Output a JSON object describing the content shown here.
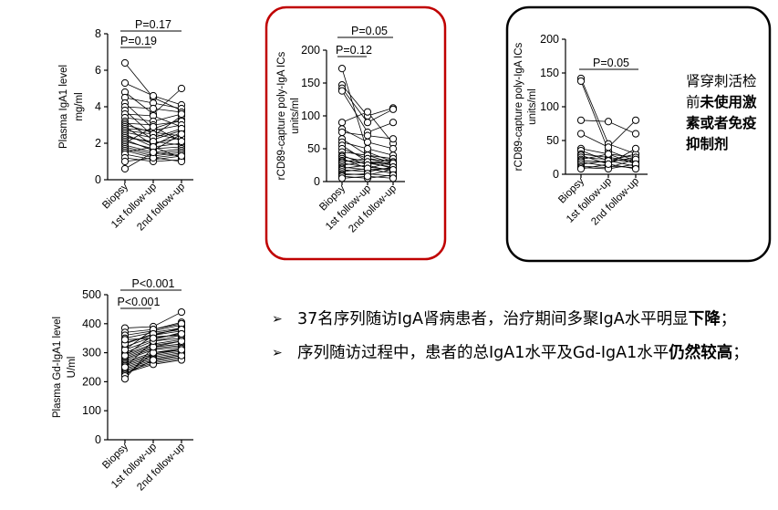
{
  "colors": {
    "panel2_border": "#c00000",
    "panel3_border": "#000000",
    "text": "#000000"
  },
  "charts": [
    {
      "title": "",
      "ylabel": "Plasma IgA1 level",
      "yunit": "mg/ml",
      "ylim": [
        0,
        8
      ],
      "yticks": [
        "0",
        "2",
        "4",
        "6",
        "8"
      ],
      "categories": [
        "Biopsy",
        "1st follow-up",
        "2nd follow-up"
      ],
      "pvalues": [
        "P=0.17",
        "P=0.19"
      ]
    },
    {
      "title": "",
      "ylabel": "rCD89-capture poly-IgA ICs",
      "yunit": "units/ml",
      "ylim": [
        0,
        200
      ],
      "yticks": [
        "0",
        "50",
        "100",
        "150",
        "200"
      ],
      "categories": [
        "Biopsy",
        "1st follow-up",
        "2nd follow-up"
      ],
      "pvalues": [
        "P=0.05",
        "P=0.12"
      ]
    },
    {
      "title": "",
      "ylabel": "rCD89-capture poly-IgA ICs",
      "yunit": "units/ml",
      "ylim": [
        0,
        200
      ],
      "yticks": [
        "0",
        "50",
        "100",
        "150",
        "200"
      ],
      "categories": [
        "Biopsy",
        "1st follow-up",
        "2nd follow-up"
      ],
      "pvalues": [
        "P=0.05"
      ]
    },
    {
      "title": "",
      "ylabel": "Plasma Gd-IgA1 level",
      "yunit": "U/ml",
      "ylim": [
        0,
        500
      ],
      "yticks": [
        "0",
        "100",
        "200",
        "300",
        "400",
        "500"
      ],
      "categories": [
        "Biopsy",
        "1st follow-up",
        "2nd follow-up"
      ],
      "pvalues": [
        "P<0.001",
        "P<0.001"
      ]
    }
  ],
  "chart_data": [
    {
      "type": "scatter",
      "ylabel": "Plasma IgA1 level mg/ml",
      "categories": [
        "Biopsy",
        "1st follow-up",
        "2nd follow-up"
      ],
      "ylim": [
        0,
        8
      ],
      "series": [
        {
          "values": [
            6.4,
            4.5,
            3.8
          ]
        },
        {
          "values": [
            5.3,
            4.6,
            4.1
          ]
        },
        {
          "values": [
            4.8,
            3.6,
            5.0
          ]
        },
        {
          "values": [
            4.5,
            4.2,
            3.9
          ]
        },
        {
          "values": [
            4.2,
            2.8,
            3.3
          ]
        },
        {
          "values": [
            4.0,
            3.9,
            3.7
          ]
        },
        {
          "values": [
            3.8,
            2.4,
            3.5
          ]
        },
        {
          "values": [
            3.6,
            3.5,
            2.9
          ]
        },
        {
          "values": [
            3.4,
            3.2,
            3.6
          ]
        },
        {
          "values": [
            3.2,
            2.2,
            2.7
          ]
        },
        {
          "values": [
            3.1,
            3.0,
            3.2
          ]
        },
        {
          "values": [
            3.0,
            2.6,
            2.4
          ]
        },
        {
          "values": [
            2.9,
            1.9,
            2.6
          ]
        },
        {
          "values": [
            2.8,
            2.7,
            3.0
          ]
        },
        {
          "values": [
            2.7,
            2.5,
            2.2
          ]
        },
        {
          "values": [
            2.6,
            2.3,
            2.8
          ]
        },
        {
          "values": [
            2.5,
            1.8,
            2.0
          ]
        },
        {
          "values": [
            2.4,
            2.0,
            2.3
          ]
        },
        {
          "values": [
            2.3,
            2.1,
            1.9
          ]
        },
        {
          "values": [
            2.2,
            1.6,
            2.5
          ]
        },
        {
          "values": [
            2.1,
            1.7,
            1.8
          ]
        },
        {
          "values": [
            2.0,
            2.9,
            2.1
          ]
        },
        {
          "values": [
            1.9,
            1.5,
            1.7
          ]
        },
        {
          "values": [
            1.8,
            1.4,
            1.6
          ]
        },
        {
          "values": [
            1.7,
            1.3,
            1.5
          ]
        },
        {
          "values": [
            1.6,
            1.2,
            1.4
          ]
        },
        {
          "values": [
            1.5,
            1.8,
            1.2
          ]
        },
        {
          "values": [
            1.4,
            1.1,
            1.3
          ]
        },
        {
          "values": [
            1.2,
            1.0,
            1.1
          ]
        },
        {
          "values": [
            1.0,
            1.2,
            1.0
          ]
        },
        {
          "values": [
            0.6,
            1.5,
            1.3
          ]
        }
      ]
    },
    {
      "type": "scatter",
      "ylabel": "rCD89-capture poly-IgA ICs units/ml",
      "categories": [
        "Biopsy",
        "1st follow-up",
        "2nd follow-up"
      ],
      "ylim": [
        0,
        200
      ],
      "series": [
        {
          "values": [
            172,
            45,
            30
          ]
        },
        {
          "values": [
            147,
            100,
            112
          ]
        },
        {
          "values": [
            142,
            90,
            110
          ]
        },
        {
          "values": [
            138,
            75,
            90
          ]
        },
        {
          "values": [
            90,
            106,
            58
          ]
        },
        {
          "values": [
            80,
            60,
            50
          ]
        },
        {
          "values": [
            75,
            70,
            65
          ]
        },
        {
          "values": [
            65,
            40,
            35
          ]
        },
        {
          "values": [
            60,
            50,
            40
          ]
        },
        {
          "values": [
            55,
            30,
            25
          ]
        },
        {
          "values": [
            50,
            35,
            30
          ]
        },
        {
          "values": [
            45,
            40,
            28
          ]
        },
        {
          "values": [
            40,
            25,
            35
          ]
        },
        {
          "values": [
            38,
            30,
            20
          ]
        },
        {
          "values": [
            35,
            20,
            30
          ]
        },
        {
          "values": [
            32,
            28,
            22
          ]
        },
        {
          "values": [
            30,
            35,
            25
          ]
        },
        {
          "values": [
            28,
            22,
            18
          ]
        },
        {
          "values": [
            25,
            30,
            28
          ]
        },
        {
          "values": [
            22,
            18,
            20
          ]
        },
        {
          "values": [
            20,
            25,
            15
          ]
        },
        {
          "values": [
            18,
            15,
            22
          ]
        },
        {
          "values": [
            15,
            20,
            12
          ]
        },
        {
          "values": [
            12,
            10,
            18
          ]
        },
        {
          "values": [
            10,
            12,
            8
          ]
        },
        {
          "values": [
            8,
            5,
            10
          ]
        },
        {
          "values": [
            5,
            8,
            5
          ]
        }
      ]
    },
    {
      "type": "scatter",
      "ylabel": "rCD89-capture poly-IgA ICs units/ml",
      "categories": [
        "Biopsy",
        "1st follow-up",
        "2nd follow-up"
      ],
      "ylim": [
        0,
        200
      ],
      "series": [
        {
          "values": [
            142,
            45,
            30
          ]
        },
        {
          "values": [
            138,
            35,
            20
          ]
        },
        {
          "values": [
            80,
            78,
            60
          ]
        },
        {
          "values": [
            60,
            40,
            80
          ]
        },
        {
          "values": [
            38,
            30,
            25
          ]
        },
        {
          "values": [
            35,
            20,
            30
          ]
        },
        {
          "values": [
            30,
            25,
            20
          ]
        },
        {
          "values": [
            28,
            15,
            38
          ]
        },
        {
          "values": [
            25,
            22,
            18
          ]
        },
        {
          "values": [
            22,
            30,
            15
          ]
        },
        {
          "values": [
            20,
            18,
            25
          ]
        },
        {
          "values": [
            18,
            12,
            10
          ]
        },
        {
          "values": [
            15,
            20,
            12
          ]
        },
        {
          "values": [
            12,
            10,
            22
          ]
        },
        {
          "values": [
            10,
            8,
            15
          ]
        },
        {
          "values": [
            8,
            15,
            8
          ]
        }
      ]
    },
    {
      "type": "scatter",
      "ylabel": "Plasma Gd-IgA1 level U/ml",
      "categories": [
        "Biopsy",
        "1st follow-up",
        "2nd follow-up"
      ],
      "ylim": [
        0,
        500
      ],
      "series": [
        {
          "values": [
            385,
            390,
            440
          ]
        },
        {
          "values": [
            370,
            380,
            405
          ]
        },
        {
          "values": [
            360,
            375,
            395
          ]
        },
        {
          "values": [
            350,
            370,
            385
          ]
        },
        {
          "values": [
            335,
            360,
            375
          ]
        },
        {
          "values": [
            320,
            355,
            360
          ]
        },
        {
          "values": [
            310,
            345,
            370
          ]
        },
        {
          "values": [
            300,
            340,
            350
          ]
        },
        {
          "values": [
            295,
            330,
            345
          ]
        },
        {
          "values": [
            290,
            325,
            340
          ]
        },
        {
          "values": [
            285,
            320,
            330
          ]
        },
        {
          "values": [
            280,
            315,
            325
          ]
        },
        {
          "values": [
            275,
            310,
            320
          ]
        },
        {
          "values": [
            270,
            300,
            315
          ]
        },
        {
          "values": [
            265,
            295,
            310
          ]
        },
        {
          "values": [
            260,
            290,
            305
          ]
        },
        {
          "values": [
            255,
            285,
            300
          ]
        },
        {
          "values": [
            250,
            280,
            295
          ]
        },
        {
          "values": [
            245,
            275,
            290
          ]
        },
        {
          "values": [
            240,
            270,
            285
          ]
        },
        {
          "values": [
            235,
            265,
            280
          ]
        },
        {
          "values": [
            230,
            260,
            275
          ]
        },
        {
          "values": [
            225,
            275,
            290
          ]
        },
        {
          "values": [
            220,
            300,
            310
          ]
        },
        {
          "values": [
            210,
            320,
            340
          ]
        },
        {
          "values": [
            250,
            340,
            360
          ]
        },
        {
          "values": [
            290,
            360,
            385
          ]
        },
        {
          "values": [
            310,
            380,
            400
          ]
        },
        {
          "values": [
            330,
            365,
            380
          ]
        },
        {
          "values": [
            345,
            350,
            365
          ]
        }
      ]
    }
  ],
  "note": {
    "normal": "肾穿刺活检前",
    "bold": "未使用激素或者免疫抑制剂"
  },
  "bullets": [
    {
      "arrow": "➢",
      "text1": "37名序列随访IgA肾病患者，治疗期间多聚IgA水平明显",
      "bold": "下降",
      "text2": "；"
    },
    {
      "arrow": "➢",
      "text1": "序列随访过程中，患者的总IgA1水平及Gd-IgA1水平",
      "bold": "仍然较高",
      "text2": "；"
    }
  ]
}
